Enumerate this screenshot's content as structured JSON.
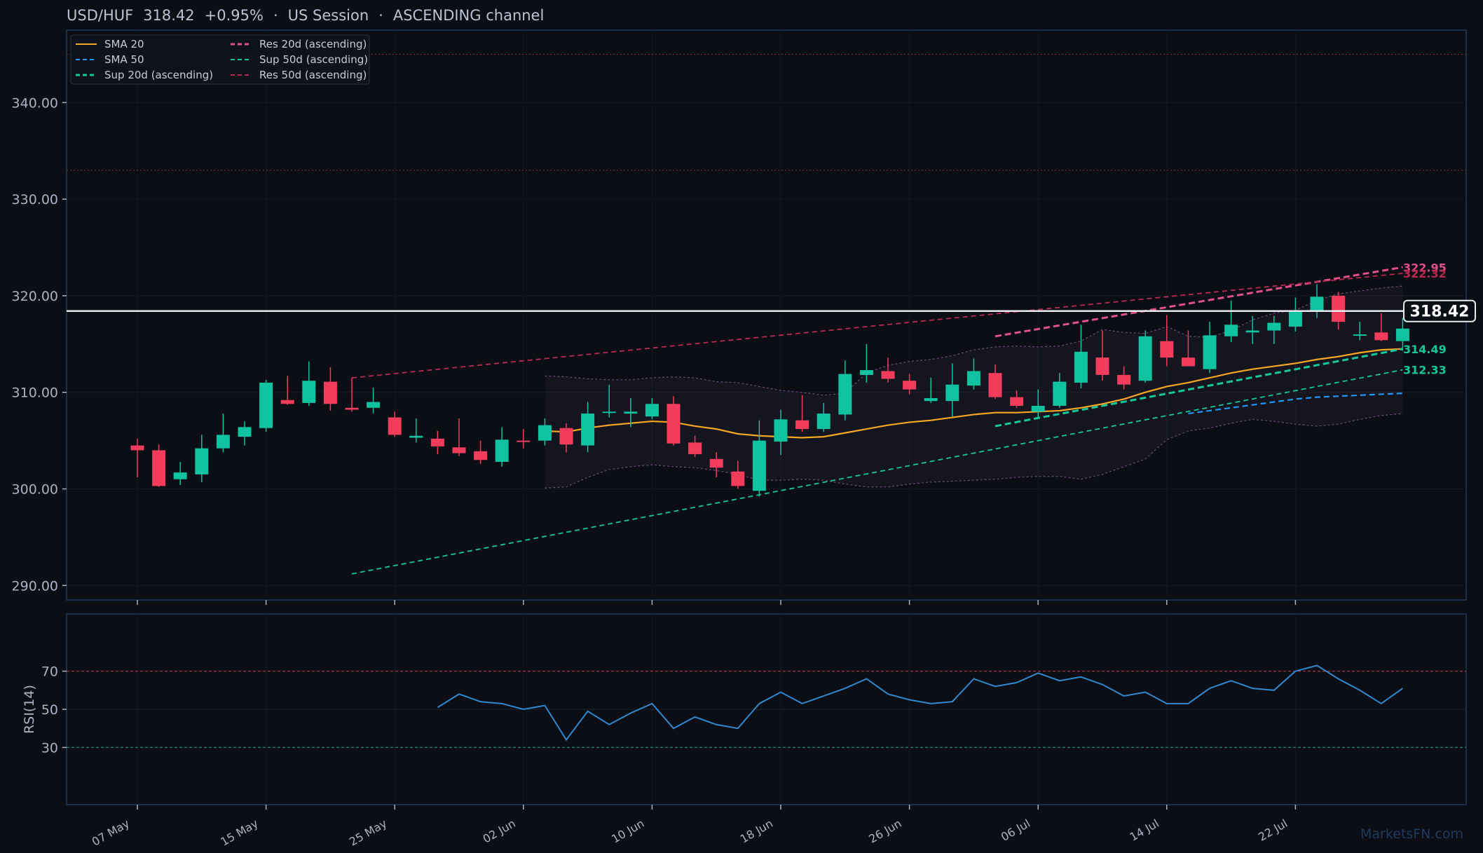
{
  "header": {
    "pair": "USD/HUF",
    "price": "318.42",
    "change": "+0.95%",
    "session": "US Session",
    "channel": "ASCENDING channel",
    "sep": "·"
  },
  "watermark": "MarketsFN.com",
  "colors": {
    "background": "#0b0e14",
    "up": "#0fc2a0",
    "down": "#f23c5c",
    "sma20": "#f5a623",
    "sma50": "#2196f3",
    "sup": "#16c79a",
    "res": "#e0508a",
    "res50": "#b8294f",
    "rsi": "#2f88d0"
  },
  "chart_data": [
    {
      "type": "candlestick",
      "title": "USD/HUF 318.42 +0.95% · US Session · ASCENDING channel",
      "ylim": [
        288.5,
        347.5
      ],
      "yticks": [
        "290.00",
        "300.00",
        "310.00",
        "320.00",
        "330.00",
        "340.00"
      ],
      "ytick_values": [
        290,
        300,
        310,
        320,
        330,
        340
      ],
      "xtick_labels": [
        {
          "label": "07 May",
          "index": 0
        },
        {
          "label": "15 May",
          "index": 6
        },
        {
          "label": "25 May",
          "index": 12
        },
        {
          "label": "02 Jun",
          "index": 18
        },
        {
          "label": "10 Jun",
          "index": 24
        },
        {
          "label": "18 Jun",
          "index": 30
        },
        {
          "label": "26 Jun",
          "index": 36
        },
        {
          "label": "06 Jul",
          "index": 42
        },
        {
          "label": "14 Jul",
          "index": 48
        },
        {
          "label": "22 Jul",
          "index": 54
        }
      ],
      "candles": [
        [
          304.5,
          305.2,
          301.2,
          304.0
        ],
        [
          304.0,
          304.6,
          300.2,
          300.3
        ],
        [
          301.0,
          302.8,
          300.4,
          301.7
        ],
        [
          301.5,
          305.6,
          300.7,
          304.2
        ],
        [
          304.2,
          307.8,
          303.8,
          305.6
        ],
        [
          305.4,
          307.0,
          304.5,
          306.4
        ],
        [
          306.3,
          311.3,
          305.9,
          311.0
        ],
        [
          309.2,
          311.7,
          308.7,
          308.8
        ],
        [
          308.9,
          313.2,
          308.6,
          311.2
        ],
        [
          311.1,
          312.6,
          308.1,
          308.8
        ],
        [
          308.4,
          311.5,
          308.0,
          308.2
        ],
        [
          308.4,
          310.5,
          307.8,
          309.0
        ],
        [
          307.4,
          308.0,
          305.4,
          305.6
        ],
        [
          305.3,
          307.3,
          304.8,
          305.5
        ],
        [
          305.2,
          306.0,
          303.6,
          304.4
        ],
        [
          304.3,
          307.3,
          303.4,
          303.7
        ],
        [
          303.9,
          305.0,
          302.6,
          303.0
        ],
        [
          302.8,
          306.4,
          302.3,
          305.1
        ],
        [
          305.0,
          306.2,
          304.2,
          304.9
        ],
        [
          305.0,
          307.3,
          304.5,
          306.6
        ],
        [
          306.3,
          306.8,
          303.8,
          304.6
        ],
        [
          304.5,
          309.0,
          303.8,
          307.8
        ],
        [
          308.0,
          310.8,
          307.4,
          308.0
        ],
        [
          307.8,
          309.4,
          306.4,
          308.0
        ],
        [
          307.5,
          309.4,
          307.2,
          308.8
        ],
        [
          308.8,
          309.6,
          304.5,
          304.7
        ],
        [
          304.8,
          305.5,
          303.3,
          303.6
        ],
        [
          303.1,
          303.8,
          301.2,
          302.2
        ],
        [
          301.8,
          302.9,
          300.0,
          300.3
        ],
        [
          299.8,
          307.1,
          299.2,
          305.0
        ],
        [
          304.9,
          308.2,
          303.5,
          307.2
        ],
        [
          307.1,
          309.7,
          305.9,
          306.2
        ],
        [
          306.2,
          308.9,
          305.9,
          307.8
        ],
        [
          307.7,
          313.3,
          307.1,
          311.9
        ],
        [
          311.8,
          315.0,
          311.0,
          312.3
        ],
        [
          312.2,
          313.6,
          311.0,
          311.4
        ],
        [
          311.2,
          311.9,
          309.8,
          310.3
        ],
        [
          309.1,
          311.5,
          308.9,
          309.4
        ],
        [
          309.1,
          313.0,
          307.5,
          310.8
        ],
        [
          310.7,
          313.5,
          310.3,
          312.2
        ],
        [
          312.0,
          312.9,
          309.3,
          309.5
        ],
        [
          309.5,
          310.2,
          308.4,
          308.6
        ],
        [
          308.0,
          310.3,
          307.4,
          308.6
        ],
        [
          308.6,
          312.0,
          308.4,
          311.1
        ],
        [
          311.0,
          317.0,
          310.4,
          314.2
        ],
        [
          313.6,
          316.4,
          311.2,
          311.8
        ],
        [
          311.8,
          312.7,
          310.3,
          310.8
        ],
        [
          311.2,
          316.4,
          311.0,
          315.8
        ],
        [
          315.3,
          318.0,
          312.7,
          313.6
        ],
        [
          313.6,
          316.4,
          312.7,
          312.7
        ],
        [
          312.4,
          317.3,
          312.0,
          315.9
        ],
        [
          315.8,
          319.5,
          315.2,
          317.0
        ],
        [
          316.2,
          317.9,
          315.0,
          316.4
        ],
        [
          316.4,
          317.9,
          315.0,
          317.2
        ],
        [
          316.8,
          319.8,
          316.3,
          318.5
        ],
        [
          318.4,
          321.2,
          317.7,
          319.9
        ],
        [
          320.0,
          320.4,
          316.5,
          317.3
        ],
        [
          316.0,
          317.3,
          315.4,
          316.0
        ],
        [
          316.2,
          318.2,
          315.3,
          315.4
        ],
        [
          315.3,
          317.7,
          314.3,
          316.6
        ]
      ],
      "current_price": 318.42,
      "current_price_label": "318.42",
      "reference_lines": [
        345.0,
        333.0
      ],
      "series": [
        {
          "name": "SMA 20",
          "start": 19,
          "values": [
            306.0,
            305.9,
            306.3,
            306.6,
            306.8,
            307.0,
            306.9,
            306.5,
            306.2,
            305.7,
            305.5,
            305.4,
            305.3,
            305.4,
            305.8,
            306.2,
            306.6,
            306.9,
            307.1,
            307.4,
            307.7,
            307.9,
            307.9,
            308.0,
            308.1,
            308.4,
            308.8,
            309.3,
            310.0,
            310.6,
            311.0,
            311.5,
            312.0,
            312.4,
            312.7,
            313.0,
            313.4,
            313.7,
            314.1,
            314.4,
            314.5
          ]
        },
        {
          "name": "SMA 50",
          "start": 49,
          "values": [
            307.8,
            308.1,
            308.4,
            308.7,
            309.0,
            309.3,
            309.5,
            309.6,
            309.7,
            309.8,
            309.9
          ]
        },
        {
          "name": "Sup 20d (ascending)",
          "start": 40,
          "values": [
            306.5,
            314.49
          ]
        },
        {
          "name": "Res 20d (ascending)",
          "start": 40,
          "values": [
            315.8,
            322.95
          ]
        },
        {
          "name": "Sup 50d (ascending)",
          "start": 10,
          "values": [
            291.2,
            312.33
          ]
        },
        {
          "name": "Res 50d (ascending)",
          "start": 10,
          "values": [
            311.5,
            322.32
          ]
        }
      ],
      "channel_band": {
        "start": 19,
        "upper": [
          311.7,
          311.6,
          311.4,
          311.3,
          311.3,
          311.5,
          311.6,
          311.5,
          311.1,
          311.0,
          310.6,
          310.2,
          310.0,
          309.7,
          309.9,
          312.0,
          312.8,
          313.2,
          313.4,
          313.8,
          314.4,
          314.7,
          314.8,
          314.7,
          314.8,
          315.3,
          316.5,
          316.2,
          316.1,
          316.8,
          315.8,
          315.7,
          316.4,
          317.5,
          318.2,
          318.5,
          319.5,
          320.2,
          320.5,
          320.8,
          321.0
        ],
        "lower": [
          300.1,
          300.2,
          301.2,
          302.0,
          302.3,
          302.5,
          302.3,
          302.2,
          301.9,
          301.5,
          300.9,
          300.9,
          301.0,
          300.9,
          300.5,
          300.2,
          300.2,
          300.5,
          300.7,
          300.8,
          300.9,
          301.0,
          301.2,
          301.3,
          301.3,
          301.0,
          301.5,
          302.3,
          303.1,
          305.1,
          306.0,
          306.3,
          306.8,
          307.2,
          307.0,
          306.7,
          306.5,
          306.7,
          307.2,
          307.6,
          307.8
        ]
      },
      "annotations": [
        {
          "label": "322.95",
          "value": 322.95,
          "color": "#e0508a"
        },
        {
          "label": "322.32",
          "value": 322.32,
          "color": "#b8294f"
        },
        {
          "label": "314.49",
          "value": 314.49,
          "color": "#16c79a"
        },
        {
          "label": "312.33",
          "value": 312.33,
          "color": "#16c79a"
        }
      ],
      "legend": [
        {
          "name": "SMA 20",
          "color": "#f5a623",
          "dash": "solid"
        },
        {
          "name": "SMA 50",
          "color": "#2196f3",
          "dash": "dashed"
        },
        {
          "name": "Sup 20d (ascending)",
          "color": "#16c79a",
          "dash": "dashed"
        },
        {
          "name": "Res 20d (ascending)",
          "color": "#e0508a",
          "dash": "dashed"
        },
        {
          "name": "Sup 50d (ascending)",
          "color": "#16c79a",
          "dash": "dashed"
        },
        {
          "name": "Res 50d (ascending)",
          "color": "#b8294f",
          "dash": "dashed"
        }
      ],
      "legend_position": "top-left",
      "grid": true
    },
    {
      "type": "line",
      "ylabel": "RSI(14)",
      "ylim": [
        0,
        100
      ],
      "yticks": [
        "30",
        "50",
        "70"
      ],
      "ytick_values": [
        30,
        50,
        70
      ],
      "overbought": 70,
      "oversold": 30,
      "start": 14,
      "values": [
        51,
        58,
        54,
        53,
        50,
        52,
        34,
        49,
        42,
        48,
        53,
        40,
        46,
        42,
        40,
        53,
        59,
        53,
        57,
        61,
        66,
        58,
        55,
        53,
        54,
        66,
        62,
        64,
        69,
        65,
        67,
        63,
        57,
        59,
        53,
        53,
        61,
        65,
        61,
        60,
        70,
        73,
        66,
        60,
        53,
        61
      ]
    }
  ]
}
